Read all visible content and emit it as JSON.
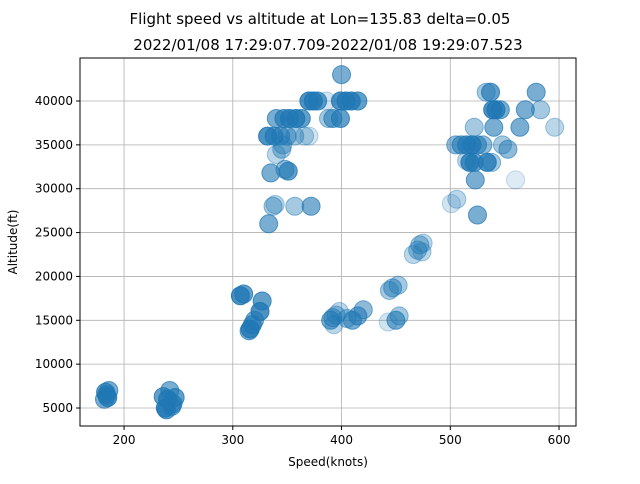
{
  "chart_data": {
    "type": "scatter",
    "title": "Flight speed vs altitude at Lon=135.83 delta=0.05",
    "subtitle": "2022/01/08 17:29:07.709-2022/01/08 19:29:07.523",
    "xlabel": "Speed(knots)",
    "ylabel": "Altitude(ft)",
    "xlim": [
      159.5,
      615.6
    ],
    "ylim": [
      2950,
      44900
    ],
    "xticks": [
      200,
      300,
      400,
      500,
      600
    ],
    "yticks": [
      5000,
      10000,
      15000,
      20000,
      25000,
      30000,
      35000,
      40000
    ],
    "xtick_labels": [
      "200",
      "300",
      "400",
      "500",
      "600"
    ],
    "ytick_labels": [
      "5000",
      "10000",
      "15000",
      "20000",
      "25000",
      "30000",
      "35000",
      "40000"
    ],
    "grid": true,
    "color": "#1f77b4",
    "points": [
      [
        182,
        6000,
        0.6
      ],
      [
        184,
        6500,
        0.7
      ],
      [
        186,
        7000,
        0.6
      ],
      [
        183,
        6800,
        0.7
      ],
      [
        185,
        6200,
        0.8
      ],
      [
        238,
        5000,
        0.8
      ],
      [
        240,
        6000,
        0.8
      ],
      [
        242,
        7000,
        0.6
      ],
      [
        245,
        5500,
        0.7
      ],
      [
        247,
        6200,
        0.7
      ],
      [
        239,
        4800,
        0.7
      ],
      [
        244,
        5200,
        0.6
      ],
      [
        236,
        6300,
        0.7
      ],
      [
        307,
        17800,
        0.8
      ],
      [
        310,
        18000,
        0.7
      ],
      [
        316,
        14000,
        0.8
      ],
      [
        318,
        14500,
        0.7
      ],
      [
        320,
        15000,
        0.6
      ],
      [
        325,
        16000,
        0.8
      ],
      [
        327,
        17200,
        0.7
      ],
      [
        315,
        13800,
        0.6
      ],
      [
        333,
        26000,
        0.6
      ],
      [
        337,
        28000,
        0.4
      ],
      [
        339,
        28200,
        0.3
      ],
      [
        357,
        28000,
        0.4
      ],
      [
        372,
        28000,
        0.6
      ],
      [
        335,
        31800,
        0.6
      ],
      [
        340,
        33900,
        0.3
      ],
      [
        345,
        34500,
        0.4
      ],
      [
        351,
        32000,
        0.7
      ],
      [
        348,
        32200,
        0.5
      ],
      [
        332,
        36000,
        0.8
      ],
      [
        338,
        36000,
        0.7
      ],
      [
        344,
        36000,
        0.6
      ],
      [
        350,
        36000,
        0.5
      ],
      [
        357,
        36000,
        0.4
      ],
      [
        366,
        36000,
        0.3
      ],
      [
        370,
        36000,
        0.2
      ],
      [
        340,
        38000,
        0.6
      ],
      [
        347,
        38000,
        0.7
      ],
      [
        352,
        38000,
        0.8
      ],
      [
        358,
        38000,
        0.8
      ],
      [
        363,
        38000,
        0.7
      ],
      [
        346,
        35000,
        0.4
      ],
      [
        370,
        40000,
        0.8
      ],
      [
        374,
        40000,
        0.8
      ],
      [
        378,
        40000,
        0.7
      ],
      [
        386,
        40000,
        0.2
      ],
      [
        392,
        38000,
        0.6
      ],
      [
        388,
        38000,
        0.4
      ],
      [
        399,
        38000,
        0.7
      ],
      [
        399,
        40000,
        0.8
      ],
      [
        404,
        40000,
        0.8
      ],
      [
        409,
        40000,
        0.8
      ],
      [
        415,
        40000,
        0.7
      ],
      [
        400,
        43000,
        0.6
      ],
      [
        390,
        15000,
        0.6
      ],
      [
        393,
        14500,
        0.3
      ],
      [
        395,
        15600,
        0.4
      ],
      [
        392,
        15300,
        0.5
      ],
      [
        398,
        16000,
        0.3
      ],
      [
        410,
        15000,
        0.6
      ],
      [
        415,
        15500,
        0.6
      ],
      [
        420,
        16200,
        0.5
      ],
      [
        405,
        15200,
        0.4
      ],
      [
        443,
        14800,
        0.2
      ],
      [
        450,
        15000,
        0.6
      ],
      [
        453,
        15500,
        0.4
      ],
      [
        444,
        18400,
        0.4
      ],
      [
        447,
        18700,
        0.5
      ],
      [
        452,
        19000,
        0.4
      ],
      [
        466,
        22500,
        0.3
      ],
      [
        470,
        23000,
        0.4
      ],
      [
        472,
        23600,
        0.4
      ],
      [
        475,
        23800,
        0.3
      ],
      [
        474,
        22800,
        0.3
      ],
      [
        501,
        28300,
        0.2
      ],
      [
        506,
        28800,
        0.3
      ],
      [
        525,
        27000,
        0.6
      ],
      [
        523,
        31000,
        0.6
      ],
      [
        560,
        31000,
        0.15
      ],
      [
        505,
        35000,
        0.5
      ],
      [
        510,
        35000,
        0.6
      ],
      [
        515,
        35000,
        0.7
      ],
      [
        520,
        35000,
        0.8
      ],
      [
        525,
        35000,
        0.6
      ],
      [
        530,
        35000,
        0.5
      ],
      [
        548,
        35000,
        0.4
      ],
      [
        553,
        34500,
        0.5
      ],
      [
        518,
        33000,
        0.8
      ],
      [
        522,
        33000,
        0.7
      ],
      [
        534,
        33000,
        0.8
      ],
      [
        538,
        33000,
        0.4
      ],
      [
        515,
        33200,
        0.3
      ],
      [
        522,
        37000,
        0.4
      ],
      [
        540,
        37000,
        0.6
      ],
      [
        564,
        37000,
        0.6
      ],
      [
        596,
        37000,
        0.3
      ],
      [
        533,
        41000,
        0.4
      ],
      [
        537,
        41000,
        0.7
      ],
      [
        539,
        39000,
        0.8
      ],
      [
        542,
        39000,
        0.8
      ],
      [
        546,
        39000,
        0.6
      ],
      [
        569,
        39000,
        0.6
      ],
      [
        583,
        39000,
        0.4
      ],
      [
        579,
        41000,
        0.6
      ]
    ]
  }
}
